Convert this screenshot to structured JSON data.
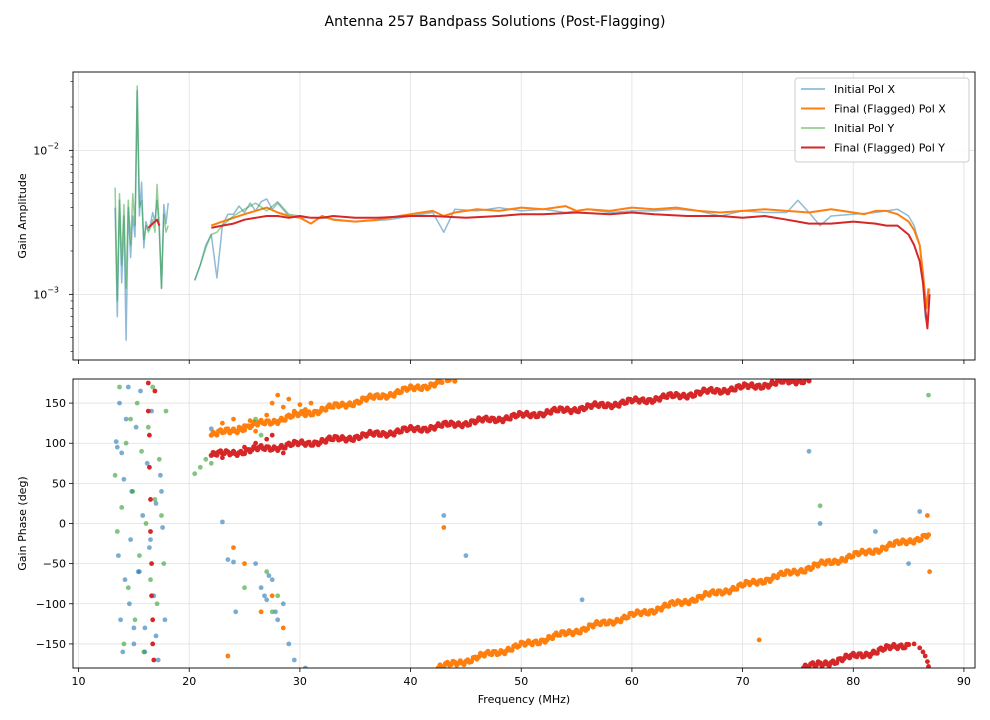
{
  "chart_data": {
    "title": "Antenna 257 Bandpass Solutions (Post-Flagging)",
    "xlabel": "Frequency (MHz)",
    "xlim": [
      9.5,
      91
    ],
    "xticks": [
      10,
      20,
      30,
      40,
      50,
      60,
      70,
      80,
      90
    ],
    "grid": true,
    "panels": [
      {
        "type": "line",
        "yscale": "log",
        "ylabel": "Gain Amplitude",
        "ylim": [
          0.00035,
          0.035
        ],
        "yticks": [
          {
            "value": 0.001,
            "label": "10^-3"
          },
          {
            "value": 0.01,
            "label": "10^-2"
          }
        ],
        "legend": "top-right",
        "series": [
          {
            "name": "Initial Pol X",
            "color": "#1f77b4",
            "alpha": 0.5,
            "x": [
              13.3,
              13.5,
              13.7,
              13.9,
              14.1,
              14.3,
              14.5,
              14.7,
              14.9,
              15.1,
              15.3,
              15.5,
              15.7,
              15.9,
              16.1,
              16.3,
              16.5,
              16.7,
              16.9,
              17.1,
              17.3,
              17.5,
              17.7,
              17.9,
              18.1,
              null,
              20.5,
              21,
              21.5,
              22,
              22.5,
              23,
              23.5,
              24,
              24.5,
              25,
              25.5,
              26,
              26.5,
              27,
              27.5,
              28,
              29,
              30,
              32,
              35,
              38,
              40,
              42,
              43,
              44,
              46,
              48,
              50,
              52,
              54,
              56,
              58,
              60,
              62,
              64,
              66,
              68,
              70,
              72,
              74,
              75,
              76,
              77,
              78,
              80,
              82,
              84,
              85,
              85.5,
              86,
              86.3,
              86.5,
              86.7,
              86.9
            ],
            "y": [
              0.004,
              0.0007,
              0.0045,
              0.0012,
              0.0035,
              0.00048,
              0.004,
              0.0018,
              0.0035,
              0.0025,
              0.026,
              0.0035,
              0.006,
              0.0021,
              0.0032,
              0.0028,
              0.0031,
              0.0037,
              0.0032,
              0.0045,
              0.0029,
              0.0011,
              0.0042,
              0.0031,
              0.0043,
              null,
              0.00125,
              0.0016,
              0.0022,
              0.0026,
              0.0013,
              0.003,
              0.0036,
              0.0036,
              0.0041,
              0.0037,
              0.0043,
              0.0038,
              0.0044,
              0.0046,
              0.0039,
              0.0043,
              0.0035,
              0.0034,
              0.0034,
              0.0032,
              0.0033,
              0.0035,
              0.0037,
              0.0027,
              0.0039,
              0.0038,
              0.004,
              0.0038,
              0.0039,
              0.0037,
              0.0039,
              0.0037,
              0.0038,
              0.0038,
              0.0039,
              0.0038,
              0.0035,
              0.0038,
              0.0037,
              0.0037,
              0.0045,
              0.0037,
              0.003,
              0.0035,
              0.0036,
              0.0037,
              0.0039,
              0.0035,
              0.003,
              0.0022,
              0.0012,
              0.0007,
              0.0006,
              0.0011
            ]
          },
          {
            "name": "Final (Flagged) Pol X",
            "color": "#ff7f0e",
            "alpha": 1,
            "x": [
              22,
              23,
              24,
              25,
              26,
              27,
              28,
              29,
              30,
              31,
              32,
              33,
              35,
              37,
              39,
              41,
              42,
              43,
              44,
              45,
              46,
              48,
              50,
              52,
              54,
              55,
              56,
              58,
              60,
              62,
              64,
              66,
              68,
              70,
              72,
              74,
              76,
              78,
              80,
              81,
              82,
              83,
              84,
              85,
              85.5,
              86,
              86.3,
              86.6,
              86.8
            ],
            "y": [
              0.003,
              0.0032,
              0.0034,
              0.0036,
              0.0038,
              0.004,
              0.0037,
              0.0035,
              0.0034,
              0.0031,
              0.0035,
              0.0033,
              0.0032,
              0.0033,
              0.0035,
              0.0037,
              0.0038,
              0.0035,
              0.0037,
              0.0038,
              0.0039,
              0.0038,
              0.004,
              0.0039,
              0.0041,
              0.0038,
              0.0039,
              0.0038,
              0.004,
              0.0039,
              0.004,
              0.0038,
              0.0037,
              0.0038,
              0.0039,
              0.0038,
              0.0037,
              0.0039,
              0.0037,
              0.0036,
              0.0038,
              0.0038,
              0.0036,
              0.0032,
              0.0028,
              0.0022,
              0.0014,
              0.0008,
              0.0011
            ]
          },
          {
            "name": "Initial Pol Y",
            "color": "#2ca02c",
            "alpha": 0.5,
            "x": [
              13.3,
              13.5,
              13.7,
              13.9,
              14.1,
              14.3,
              14.5,
              14.7,
              14.9,
              15.1,
              15.3,
              15.5,
              15.7,
              15.9,
              16.1,
              16.3,
              16.5,
              16.7,
              16.9,
              17.1,
              17.3,
              17.5,
              17.7,
              17.9,
              18.1,
              null,
              20.5,
              21,
              21.5,
              22,
              22.5,
              23,
              24,
              25,
              26,
              27,
              28,
              29,
              30
            ],
            "y": [
              0.0055,
              0.0009,
              0.005,
              0.0016,
              0.0042,
              0.0011,
              0.0045,
              0.0022,
              0.005,
              0.003,
              0.028,
              0.004,
              0.0045,
              0.0024,
              0.003,
              0.0027,
              0.0029,
              0.0033,
              0.0027,
              0.0058,
              0.0028,
              0.0011,
              0.0036,
              0.0027,
              0.003,
              null,
              0.00125,
              0.0016,
              0.0021,
              0.0026,
              0.0027,
              0.003,
              0.0035,
              0.0039,
              0.0043,
              0.0038,
              0.0044,
              0.0036,
              0.0035
            ]
          },
          {
            "name": "Final (Flagged) Pol Y",
            "color": "#d62728",
            "alpha": 1,
            "x": [
              16.3,
              16.7,
              17.1,
              17.3,
              null,
              22,
              23,
              24,
              25,
              26,
              27,
              28,
              29,
              30,
              31,
              32,
              33,
              35,
              37,
              40,
              42,
              45,
              48,
              50,
              52,
              55,
              58,
              60,
              62,
              65,
              68,
              70,
              72,
              74,
              75,
              76,
              78,
              80,
              82,
              83,
              84,
              85,
              85.5,
              86,
              86.3,
              86.5,
              86.7,
              86.9
            ],
            "y": [
              0.0029,
              0.0031,
              0.0033,
              0.003,
              null,
              0.0029,
              0.003,
              0.0031,
              0.0033,
              0.0034,
              0.0035,
              0.0035,
              0.0034,
              0.0035,
              0.0034,
              0.0034,
              0.0035,
              0.0034,
              0.0034,
              0.0035,
              0.0035,
              0.0034,
              0.0035,
              0.0036,
              0.0036,
              0.0037,
              0.0036,
              0.0037,
              0.0036,
              0.0035,
              0.0035,
              0.0034,
              0.0035,
              0.0033,
              0.0032,
              0.0031,
              0.0031,
              0.0032,
              0.0031,
              0.003,
              0.003,
              0.0026,
              0.0022,
              0.0017,
              0.0012,
              0.0008,
              0.00058,
              0.001
            ]
          }
        ]
      },
      {
        "type": "scatter",
        "yscale": "linear",
        "ylabel": "Gain Phase (deg)",
        "ylim": [
          -180,
          180
        ],
        "yticks": [
          {
            "value": -150,
            "label": "−150"
          },
          {
            "value": -100,
            "label": "−100"
          },
          {
            "value": -50,
            "label": "−50"
          },
          {
            "value": 0,
            "label": "0"
          },
          {
            "value": 50,
            "label": "50"
          },
          {
            "value": 100,
            "label": "100"
          },
          {
            "value": 150,
            "label": "150"
          }
        ],
        "series": [
          {
            "name": "Initial Pol X",
            "color": "#1f77b4",
            "alpha": 0.6,
            "x": [
              13.4,
              13.5,
              13.6,
              13.7,
              13.8,
              13.9,
              14,
              14.1,
              14.2,
              14.3,
              14.5,
              14.6,
              14.7,
              14.8,
              15,
              15.2,
              15.4,
              15.6,
              15.8,
              16,
              16.2,
              16.4,
              16.6,
              16.8,
              17,
              17.2,
              17.4,
              17.6,
              17.8,
              22,
              23,
              24,
              24.2,
              26,
              26.5,
              27,
              27.5,
              28,
              28.5,
              29,
              29.5,
              30.5,
              43,
              45,
              55.5,
              76,
              77,
              82,
              85,
              86
            ],
            "y": [
              102,
              95,
              -40,
              150,
              -120,
              88,
              -160,
              55,
              -70,
              130,
              170,
              -100,
              -20,
              40,
              -150,
              120,
              -60,
              165,
              10,
              -130,
              75,
              -30,
              140,
              -90,
              25,
              -170,
              60,
              -5,
              -120,
              118,
              2,
              -48,
              -110,
              -50,
              -80,
              -95,
              -70,
              -120,
              -100,
              -150,
              -170,
              -180,
              10,
              -40,
              -95,
              90,
              0,
              -10,
              -50,
              15
            ],
            "xSec": [
              15,
              15.5,
              16,
              16.5,
              17,
              17.5,
              22.5,
              23.5,
              26.8,
              27.2,
              27.8
            ],
            "ySec": [
              -130,
              -60,
              -160,
              -20,
              -140,
              40,
              110,
              -45,
              -90,
              -65,
              -110
            ]
          },
          {
            "name": "Final (Flagged) Pol X",
            "color": "#ff7f0e",
            "alpha": 1,
            "trends": [
              {
                "x0": 22,
                "x1": 44,
                "y0": 110,
                "y1": 180
              },
              {
                "x0": 42.5,
                "x1": 86.8,
                "y0": -180,
                "y1": -15
              }
            ],
            "x": [
              22.5,
              23,
              23.5,
              24,
              24.5,
              25,
              25.5,
              26,
              27,
              27.5,
              28,
              28.5,
              29,
              29.5,
              30,
              30.5,
              31,
              24,
              25,
              26.5,
              27.5,
              28.5,
              43,
              23.5,
              71.5,
              86.7,
              86.9
            ],
            "y": [
              110,
              125,
              118,
              130,
              120,
              122,
              128,
              115,
              135,
              150,
              160,
              145,
              155,
              140,
              148,
              142,
              150,
              -30,
              -50,
              -110,
              -90,
              -130,
              -5,
              -165,
              -145,
              10,
              -60
            ]
          },
          {
            "name": "Initial Pol Y",
            "color": "#2ca02c",
            "alpha": 0.6,
            "x": [
              13.3,
              13.5,
              13.7,
              13.9,
              14.1,
              14.3,
              14.5,
              14.7,
              14.9,
              15.1,
              15.3,
              15.5,
              15.7,
              15.9,
              16.1,
              16.3,
              16.5,
              16.7,
              16.9,
              17.1,
              17.3,
              17.5,
              17.7,
              17.9,
              20.5,
              21,
              21.5,
              22,
              25,
              26,
              26.5,
              27,
              27.5,
              28,
              77,
              86.8
            ],
            "y": [
              60,
              -10,
              170,
              20,
              -150,
              100,
              -80,
              130,
              40,
              -120,
              150,
              -40,
              90,
              -160,
              0,
              120,
              -70,
              170,
              30,
              -100,
              80,
              10,
              -50,
              140,
              62,
              70,
              80,
              75,
              -80,
              130,
              110,
              -60,
              -110,
              -90,
              22,
              160
            ]
          },
          {
            "name": "Final (Flagged) Pol Y",
            "color": "#d62728",
            "alpha": 1,
            "trends": [
              {
                "x0": 22,
                "x1": 76,
                "y0": 85,
                "y1": 180
              },
              {
                "x0": 75.5,
                "x1": 85,
                "y0": -180,
                "y1": -150
              }
            ],
            "x": [
              16.3,
              16.3,
              16.4,
              16.4,
              16.5,
              16.5,
              16.6,
              16.6,
              16.7,
              16.7,
              16.8,
              16.9,
              22.5,
              23,
              24,
              25,
              25.5,
              26,
              26.5,
              27,
              27.5,
              28,
              28.5,
              29,
              85.5,
              86,
              86.3,
              86.5,
              86.7,
              86.8
            ],
            "y": [
              175,
              140,
              110,
              70,
              30,
              -10,
              -50,
              -90,
              -120,
              -150,
              -170,
              165,
              88,
              82,
              90,
              95,
              92,
              100,
              95,
              105,
              110,
              92,
              88,
              100,
              -150,
              -155,
              -160,
              -165,
              -172,
              -178
            ]
          }
        ]
      }
    ]
  }
}
